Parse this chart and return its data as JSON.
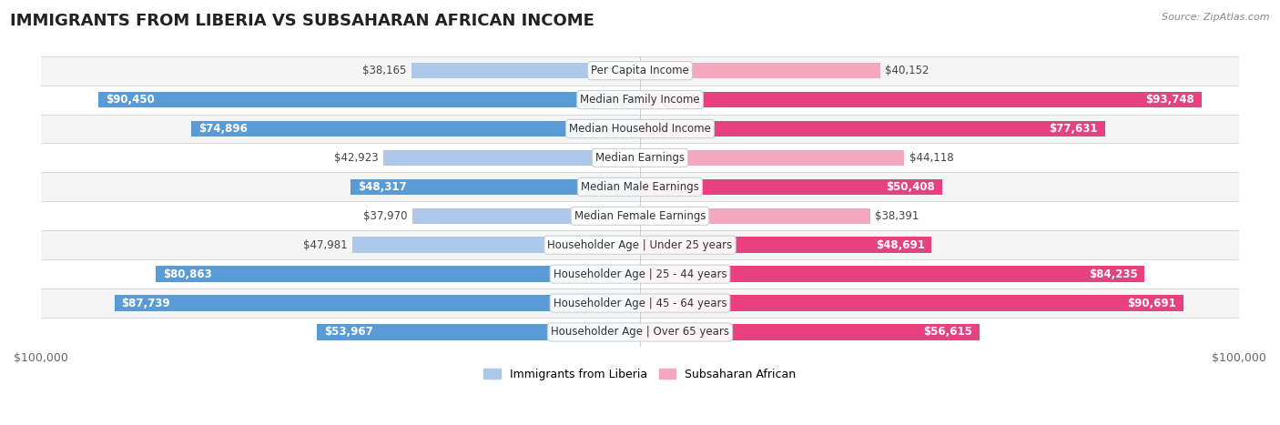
{
  "title": "IMMIGRANTS FROM LIBERIA VS SUBSAHARAN AFRICAN INCOME",
  "source": "Source: ZipAtlas.com",
  "categories": [
    "Per Capita Income",
    "Median Family Income",
    "Median Household Income",
    "Median Earnings",
    "Median Male Earnings",
    "Median Female Earnings",
    "Householder Age | Under 25 years",
    "Householder Age | 25 - 44 years",
    "Householder Age | 45 - 64 years",
    "Householder Age | Over 65 years"
  ],
  "liberia_values": [
    38165,
    90450,
    74896,
    42923,
    48317,
    37970,
    47981,
    80863,
    87739,
    53967
  ],
  "subsaharan_values": [
    40152,
    93748,
    77631,
    44118,
    50408,
    38391,
    48691,
    84235,
    90691,
    56615
  ],
  "liberia_labels": [
    "$38,165",
    "$90,450",
    "$74,896",
    "$42,923",
    "$48,317",
    "$37,970",
    "$47,981",
    "$80,863",
    "$87,739",
    "$53,967"
  ],
  "subsaharan_labels": [
    "$40,152",
    "$93,748",
    "$77,631",
    "$44,118",
    "$50,408",
    "$38,391",
    "$48,691",
    "$84,235",
    "$90,691",
    "$56,615"
  ],
  "liberia_color_light": "#adc8e8",
  "liberia_color_dark": "#5b9bd5",
  "subsaharan_color_light": "#f4a8c0",
  "subsaharan_color_dark": "#e84080",
  "max_value": 100000,
  "bar_height": 0.55,
  "row_bg_light": "#f5f5f5",
  "row_bg_dark": "#e8e8e8",
  "title_fontsize": 13,
  "label_fontsize": 8.5,
  "category_fontsize": 8.5,
  "axis_label": "$100,000",
  "legend_liberia": "Immigrants from Liberia",
  "legend_subsaharan": "Subsaharan African",
  "inside_label_threshold": 0.48
}
